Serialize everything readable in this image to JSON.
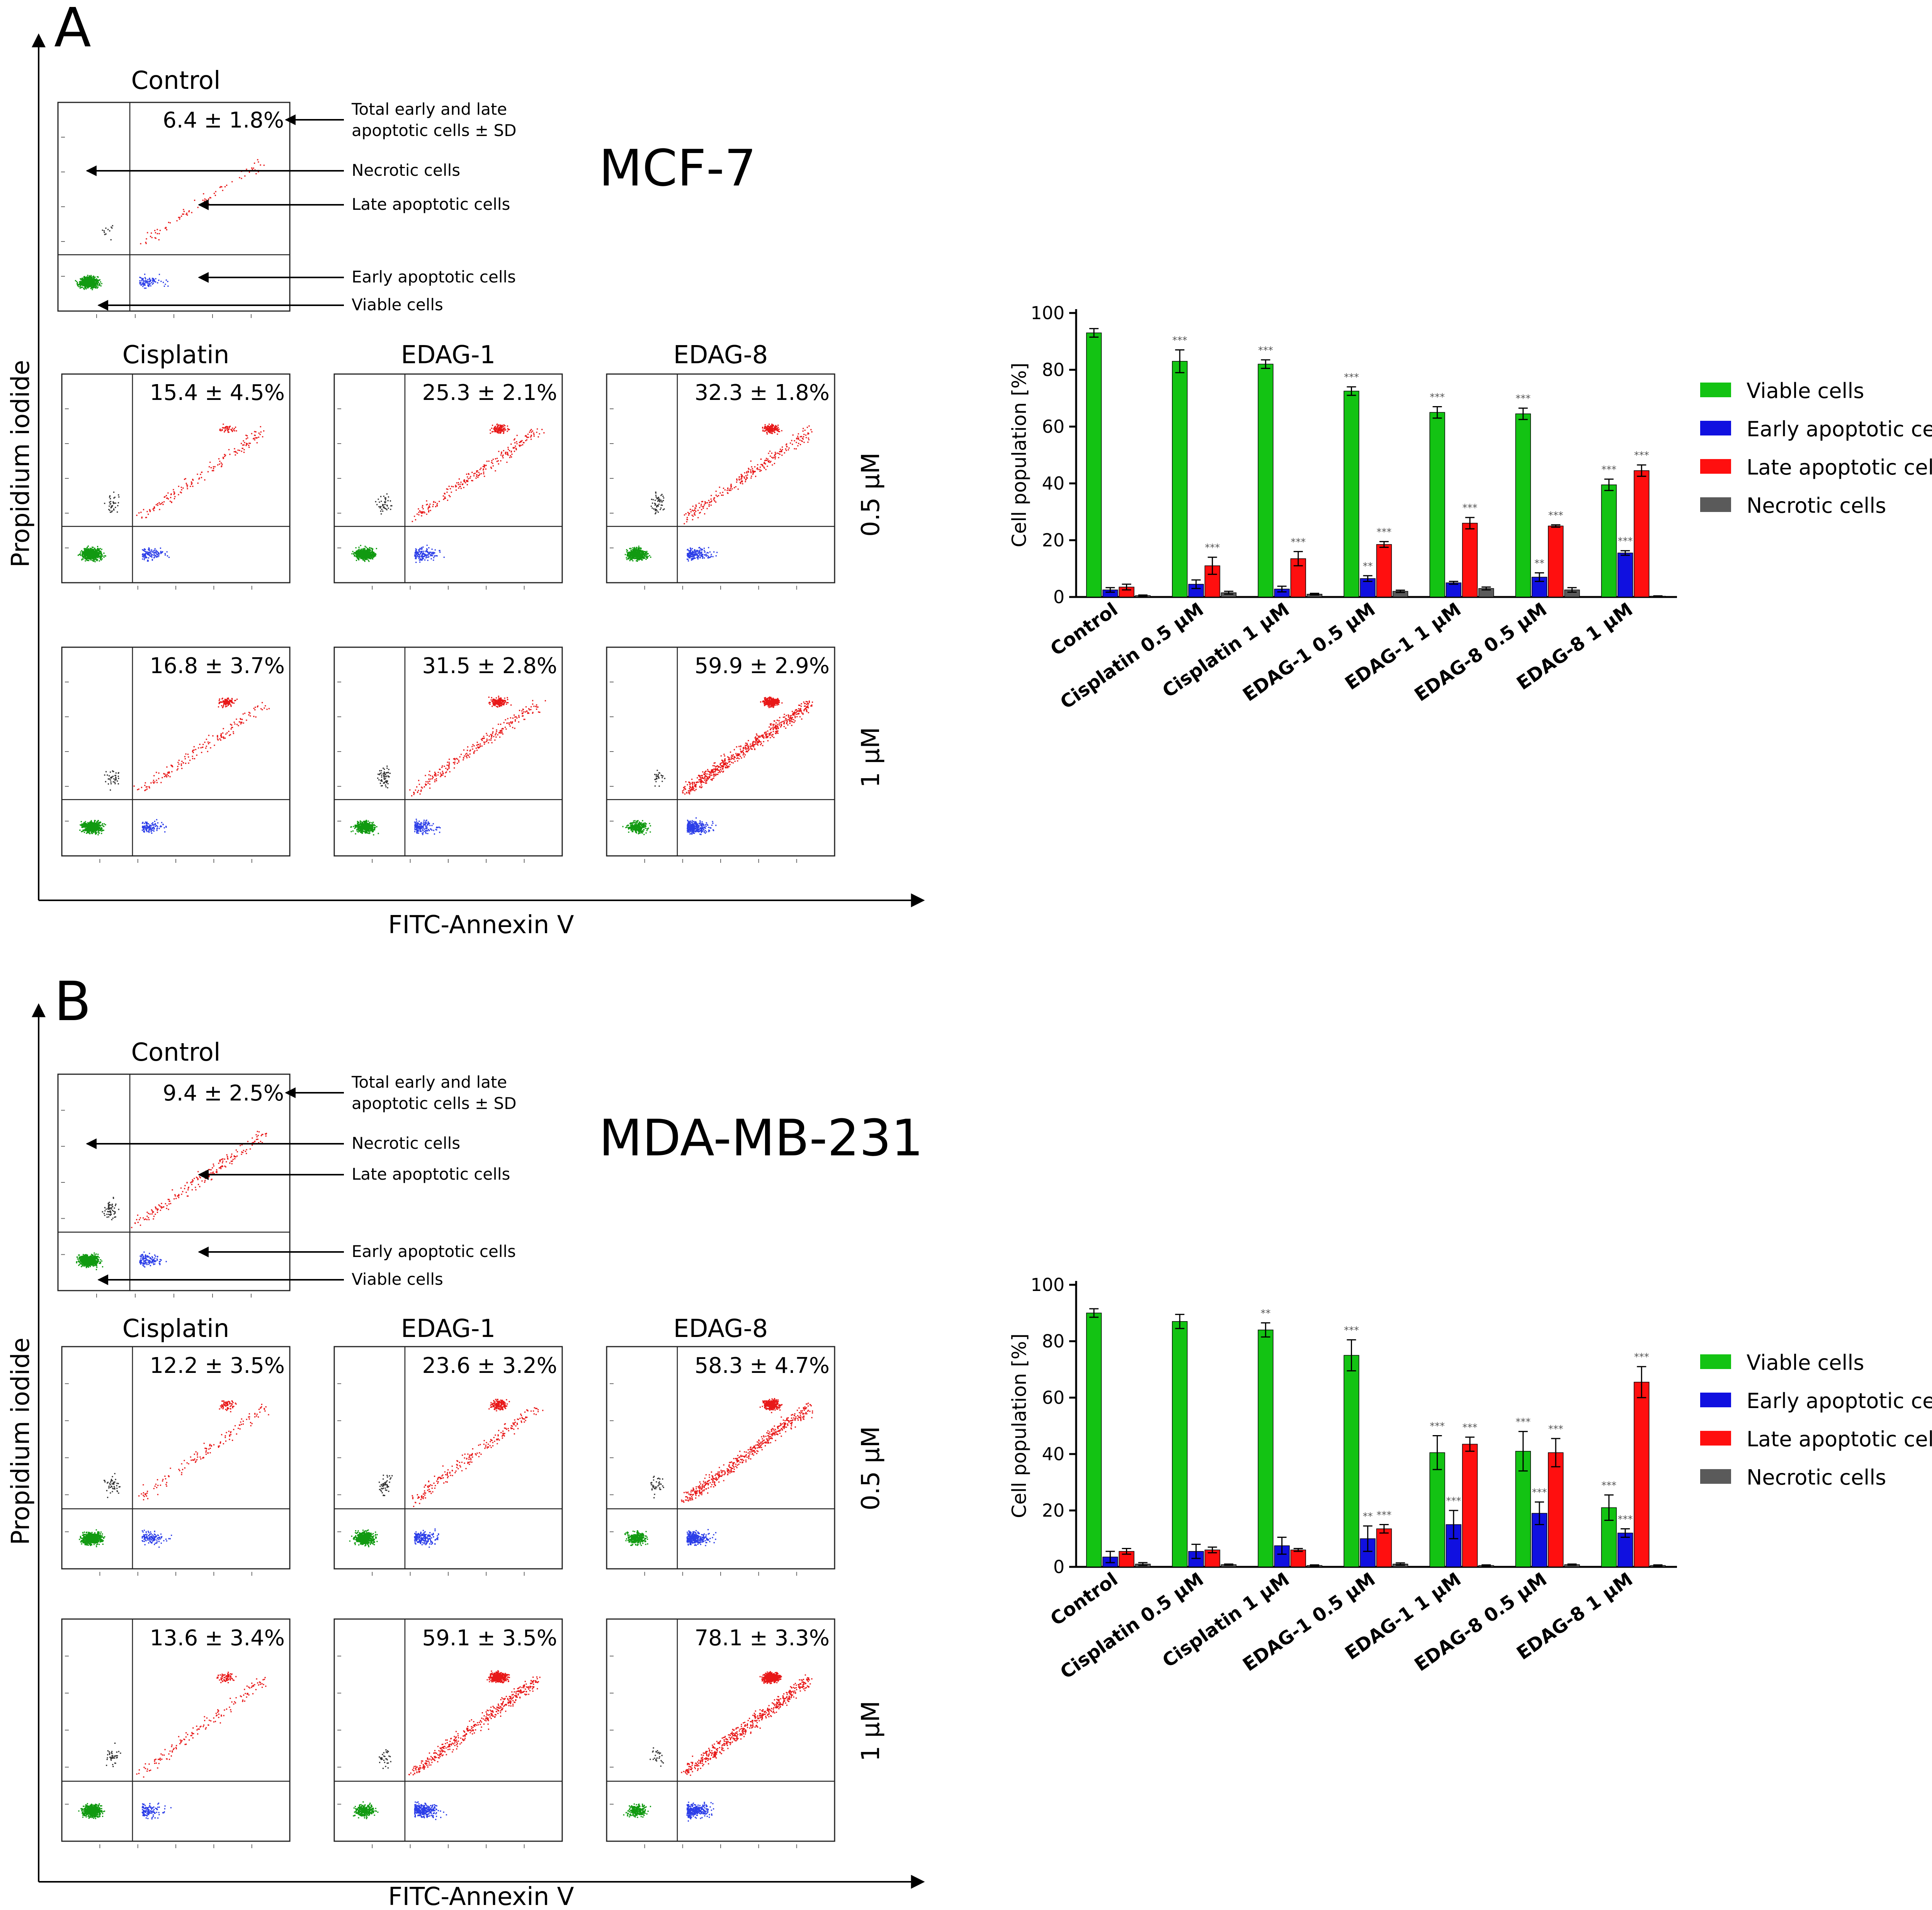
{
  "colors": {
    "viable": "#13c313",
    "early": "#1010e0",
    "late": "#ff0f0f",
    "necrotic": "#5a5a5a",
    "dot_viable": "#119a11",
    "dot_early": "#2c3ee8",
    "dot_late": "#e81818",
    "dot_necrotic": "#303030"
  },
  "panels": [
    {
      "letter": "A",
      "cell_line": "MCF-7",
      "y_axis_title": "Propidium iodide",
      "x_axis_title": "FITC-Annexin V",
      "conditions": {
        "control": "Control",
        "cisplatin": "Cisplatin",
        "edag1": "EDAG-1",
        "edag8": "EDAG-8"
      },
      "doses": {
        "low": "0.5 µM",
        "high": "1 µM"
      },
      "percentages": {
        "control": "6.4 ± 1.8%",
        "cis_low": "15.4 ± 4.5%",
        "e1_low": "25.3 ± 2.1%",
        "e8_low": "32.3 ± 1.8%",
        "cis_high": "16.8 ± 3.7%",
        "e1_high": "31.5 ± 2.8%",
        "e8_high": "59.9 ± 2.9%"
      },
      "annotations": {
        "total_line1": "Total early and late",
        "total_line2": "apoptotic cells ± SD",
        "necrotic": "Necrotic cells",
        "late": "Late apoptotic cells",
        "early": "Early apoptotic cells",
        "viable": "Viable cells"
      },
      "scatter": [
        {
          "key": "control",
          "v": 700,
          "e": 90,
          "l": 80,
          "n": 12,
          "cluster": 0.0
        },
        {
          "key": "cis_low",
          "v": 650,
          "e": 110,
          "l": 200,
          "n": 35,
          "cluster": 0.25
        },
        {
          "key": "e1_low",
          "v": 560,
          "e": 140,
          "l": 340,
          "n": 45,
          "cluster": 0.4
        },
        {
          "key": "e8_low",
          "v": 520,
          "e": 180,
          "l": 420,
          "n": 55,
          "cluster": 0.4
        },
        {
          "key": "cis_high",
          "v": 620,
          "e": 110,
          "l": 260,
          "n": 40,
          "cluster": 0.45
        },
        {
          "key": "e1_high",
          "v": 520,
          "e": 150,
          "l": 460,
          "n": 60,
          "cluster": 0.45
        },
        {
          "key": "e8_high",
          "v": 300,
          "e": 300,
          "l": 900,
          "n": 25,
          "cluster": 0.3
        }
      ]
    },
    {
      "letter": "B",
      "cell_line": "MDA-MB-231",
      "y_axis_title": "Propidium iodide",
      "x_axis_title": "FITC-Annexin V",
      "conditions": {
        "control": "Control",
        "cisplatin": "Cisplatin",
        "edag1": "EDAG-1",
        "edag8": "EDAG-8"
      },
      "doses": {
        "low": "0.5 µM",
        "high": "1 µM"
      },
      "percentages": {
        "control": "9.4 ± 2.5%",
        "cis_low": "12.2 ± 3.5%",
        "e1_low": "23.6 ± 3.2%",
        "e8_low": "58.3 ± 4.7%",
        "cis_high": "13.6 ± 3.4%",
        "e1_high": "59.1 ± 3.5%",
        "e8_high": "78.1 ± 3.3%"
      },
      "annotations": {
        "total_line1": "Total early and late",
        "total_line2": "apoptotic cells ± SD",
        "necrotic": "Necrotic cells",
        "late": "Late apoptotic cells",
        "early": "Early apoptotic cells",
        "viable": "Viable cells"
      },
      "scatter": [
        {
          "key": "control",
          "v": 700,
          "e": 120,
          "l": 200,
          "n": 60,
          "cluster": 0.0
        },
        {
          "key": "cis_low",
          "v": 650,
          "e": 120,
          "l": 200,
          "n": 45,
          "cluster": 0.3
        },
        {
          "key": "e1_low",
          "v": 560,
          "e": 200,
          "l": 380,
          "n": 50,
          "cluster": 0.4
        },
        {
          "key": "e8_low",
          "v": 320,
          "e": 320,
          "l": 800,
          "n": 35,
          "cluster": 0.4
        },
        {
          "key": "cis_high",
          "v": 620,
          "e": 120,
          "l": 220,
          "n": 40,
          "cluster": 0.3
        },
        {
          "key": "e1_high",
          "v": 300,
          "e": 300,
          "l": 900,
          "n": 30,
          "cluster": 0.5
        },
        {
          "key": "e8_high",
          "v": 220,
          "e": 300,
          "l": 1100,
          "n": 25,
          "cluster": 0.5
        }
      ]
    }
  ],
  "chart_data": [
    {
      "type": "bar",
      "title": "MCF-7",
      "xlabel": "",
      "ylabel": "Cell population [%]",
      "ylim": [
        0,
        100
      ],
      "yticks": [
        "0",
        "20",
        "40",
        "60",
        "80",
        "100"
      ],
      "categories": [
        "Control",
        "Cisplatin 0.5 µM",
        "Cisplatin 1 µM",
        "EDAG-1 0.5 µM",
        "EDAG-1 1 µM",
        "EDAG-8 0.5 µM",
        "EDAG-8 1 µM"
      ],
      "series": [
        {
          "name": "Viable cells",
          "values": [
            93,
            83,
            82,
            72.5,
            65,
            64.5,
            39.5
          ],
          "errors": [
            1.5,
            4,
            1.5,
            1.5,
            2,
            2,
            2
          ],
          "sig": [
            "",
            "***",
            "***",
            "***",
            "***",
            "***",
            "***"
          ]
        },
        {
          "name": "Early apoptotic cells",
          "values": [
            2.5,
            4.5,
            2.8,
            6.5,
            5,
            7,
            15.5
          ],
          "errors": [
            0.8,
            1.5,
            1,
            1,
            0.5,
            1.5,
            0.8
          ],
          "sig": [
            "",
            "",
            "",
            "**",
            "",
            "**",
            "***"
          ]
        },
        {
          "name": "Late apoptotic cells",
          "values": [
            3.5,
            11,
            13.5,
            18.5,
            26,
            25,
            44.5
          ],
          "errors": [
            1,
            3,
            2.5,
            1,
            2,
            0.4,
            2
          ],
          "sig": [
            "",
            "***",
            "***",
            "***",
            "***",
            "***",
            "***"
          ]
        },
        {
          "name": "Necrotic cells",
          "values": [
            0.5,
            1.5,
            1,
            2,
            3,
            2.5,
            0.3
          ],
          "errors": [
            0.2,
            0.5,
            0.3,
            0.4,
            0.5,
            0.8,
            0.1
          ],
          "sig": [
            "",
            "",
            "",
            "",
            "",
            "",
            ""
          ]
        }
      ],
      "legend": "right"
    },
    {
      "type": "bar",
      "title": "MDA-MB-231",
      "xlabel": "",
      "ylabel": "Cell population [%]",
      "ylim": [
        0,
        100
      ],
      "yticks": [
        "0",
        "20",
        "40",
        "60",
        "80",
        "100"
      ],
      "categories": [
        "Control",
        "Cisplatin 0.5 µM",
        "Cisplatin 1 µM",
        "EDAG-1 0.5 µM",
        "EDAG-1 1 µM",
        "EDAG-8 0.5 µM",
        "EDAG-8 1 µM"
      ],
      "series": [
        {
          "name": "Viable cells",
          "values": [
            90,
            87,
            84,
            75,
            40.5,
            41,
            21
          ],
          "errors": [
            1.5,
            2.5,
            2.5,
            5.5,
            6,
            7,
            4.5
          ],
          "sig": [
            "",
            "",
            "**",
            "***",
            "***",
            "***",
            "***"
          ]
        },
        {
          "name": "Early apoptotic cells",
          "values": [
            3.5,
            5.5,
            7.5,
            10,
            15,
            19,
            12
          ],
          "errors": [
            2,
            2.5,
            3,
            4.5,
            5,
            4,
            1.5
          ],
          "sig": [
            "",
            "",
            "",
            "**",
            "***",
            "***",
            "***"
          ]
        },
        {
          "name": "Late apoptotic cells",
          "values": [
            5.5,
            6,
            6,
            13.5,
            43.5,
            40.5,
            65.5
          ],
          "errors": [
            1,
            1,
            0.5,
            1.5,
            2.5,
            5,
            5.5
          ],
          "sig": [
            "",
            "",
            "",
            "***",
            "***",
            "***",
            "***"
          ]
        },
        {
          "name": "Necrotic cells",
          "values": [
            1,
            0.8,
            0.5,
            1,
            0.5,
            0.8,
            0.5
          ],
          "errors": [
            0.5,
            0.2,
            0.2,
            0.4,
            0.2,
            0.2,
            0.2
          ],
          "sig": [
            "",
            "",
            "",
            "",
            "",
            "",
            ""
          ]
        }
      ],
      "legend": "right"
    }
  ]
}
